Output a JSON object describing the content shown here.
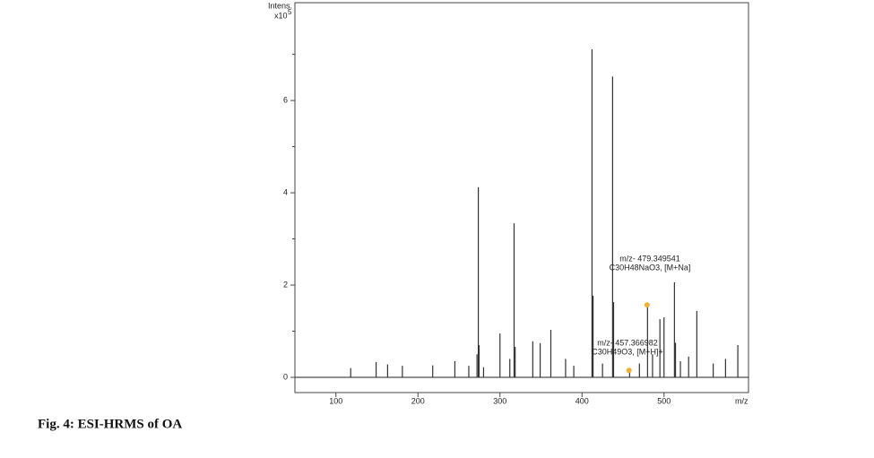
{
  "chart_data": {
    "type": "stick",
    "y_label": "Intens.",
    "y_scale": "x10",
    "y_scale_exponent": "5",
    "x_label": "m/z",
    "caption": "Fig. 4: ESI-HRMS of OA",
    "x": [
      118,
      149,
      163,
      181,
      218,
      245,
      262,
      272,
      273.6,
      274.5,
      280,
      300,
      312,
      317.2,
      318.5,
      340,
      349,
      362,
      380,
      390,
      412.2,
      413.5,
      425,
      437.3,
      438.5,
      458,
      470,
      479.9,
      486,
      495,
      500,
      512.7,
      514,
      520,
      530,
      540,
      560,
      575,
      590
    ],
    "values": [
      0.2,
      0.33,
      0.28,
      0.25,
      0.26,
      0.35,
      0.25,
      0.5,
      4.12,
      0.7,
      0.22,
      0.95,
      0.4,
      3.34,
      0.66,
      0.78,
      0.74,
      1.03,
      0.4,
      0.25,
      7.11,
      1.77,
      0.3,
      6.52,
      1.63,
      0.15,
      0.3,
      1.57,
      0.5,
      1.26,
      1.3,
      2.06,
      0.75,
      0.35,
      0.45,
      1.44,
      0.3,
      0.4,
      0.7
    ],
    "color": "#333333",
    "markers": {
      "x": [
        479.349541,
        457.366982
      ],
      "values": [
        1.57,
        0.15
      ],
      "color": "#f0b030"
    },
    "annotations": [
      {
        "lines": [
          "m/z- 479.349541",
          "C30H48NaO3, [M+Na]"
        ]
      },
      {
        "lines": [
          "m/z- 457.366982",
          "C30H49O3, [M+H]+"
        ]
      }
    ],
    "xlim": [
      50,
      603
    ],
    "ylim": [
      -0.33,
      8.12
    ],
    "xticks": [
      100,
      200,
      300,
      400,
      500
    ],
    "yticks": [
      0,
      2,
      4,
      6
    ],
    "yminor": [
      1,
      3,
      5,
      7
    ]
  }
}
